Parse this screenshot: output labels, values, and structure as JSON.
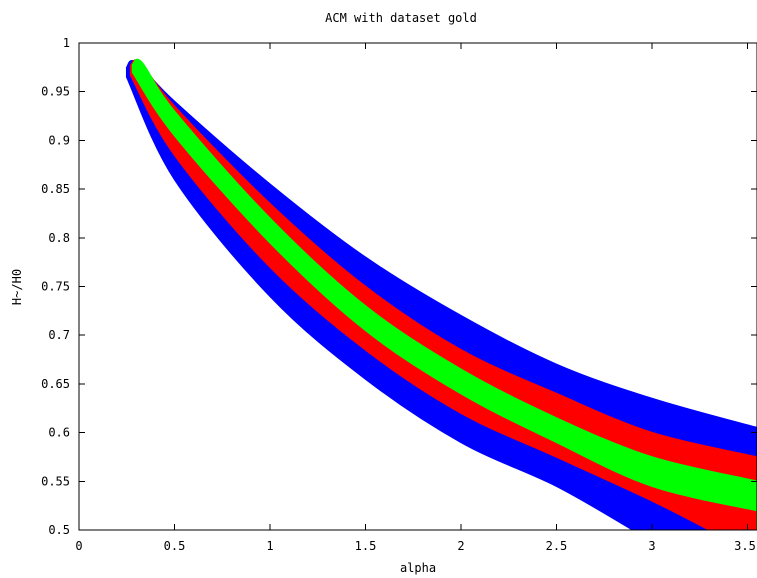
{
  "chart_data": {
    "type": "area",
    "title": "ACM with dataset gold",
    "xlabel": "alpha",
    "ylabel": "H~/H0",
    "xlim": [
      0,
      3.55
    ],
    "ylim": [
      0.5,
      1.0
    ],
    "xticks": [
      "0",
      "0.5",
      "1",
      "1.5",
      "2",
      "2.5",
      "3",
      "3.5"
    ],
    "xtick_values": [
      0,
      0.5,
      1,
      1.5,
      2,
      2.5,
      3,
      3.5
    ],
    "yticks": [
      "0.5",
      "0.55",
      "0.6",
      "0.65",
      "0.7",
      "0.75",
      "0.8",
      "0.85",
      "0.9",
      "0.95",
      "1"
    ],
    "ytick_values": [
      0.5,
      0.55,
      0.6,
      0.65,
      0.7,
      0.75,
      0.8,
      0.85,
      0.9,
      0.95,
      1.0
    ],
    "grid": false,
    "legend": "none",
    "series": [
      {
        "color": "#0000ff",
        "upper": [
          [
            0.25,
            0.975
          ],
          [
            0.3,
            0.98
          ],
          [
            0.5,
            0.94
          ],
          [
            1.0,
            0.855
          ],
          [
            1.5,
            0.78
          ],
          [
            2.0,
            0.72
          ],
          [
            2.5,
            0.67
          ],
          [
            3.0,
            0.635
          ],
          [
            3.55,
            0.605
          ]
        ],
        "lower": [
          [
            0.25,
            0.965
          ],
          [
            0.5,
            0.86
          ],
          [
            1.0,
            0.74
          ],
          [
            1.5,
            0.655
          ],
          [
            2.0,
            0.59
          ],
          [
            2.5,
            0.545
          ],
          [
            2.9,
            0.5
          ]
        ]
      },
      {
        "color": "#ff0000",
        "upper": [
          [
            0.27,
            0.977
          ],
          [
            0.32,
            0.98
          ],
          [
            0.5,
            0.935
          ],
          [
            1.0,
            0.835
          ],
          [
            1.5,
            0.75
          ],
          [
            2.0,
            0.685
          ],
          [
            2.5,
            0.64
          ],
          [
            3.0,
            0.6
          ],
          [
            3.55,
            0.575
          ]
        ],
        "lower": [
          [
            0.27,
            0.967
          ],
          [
            0.5,
            0.885
          ],
          [
            1.0,
            0.77
          ],
          [
            1.5,
            0.685
          ],
          [
            2.0,
            0.62
          ],
          [
            2.5,
            0.575
          ],
          [
            3.0,
            0.53
          ],
          [
            3.3,
            0.5
          ]
        ]
      },
      {
        "color": "#00ff00",
        "upper": [
          [
            0.28,
            0.978
          ],
          [
            0.33,
            0.98
          ],
          [
            0.5,
            0.93
          ],
          [
            1.0,
            0.82
          ],
          [
            1.5,
            0.73
          ],
          [
            2.0,
            0.665
          ],
          [
            2.5,
            0.615
          ],
          [
            3.0,
            0.575
          ],
          [
            3.55,
            0.55
          ]
        ],
        "lower": [
          [
            0.28,
            0.97
          ],
          [
            0.5,
            0.905
          ],
          [
            1.0,
            0.795
          ],
          [
            1.5,
            0.705
          ],
          [
            2.0,
            0.64
          ],
          [
            2.5,
            0.59
          ],
          [
            3.0,
            0.545
          ],
          [
            3.55,
            0.52
          ]
        ]
      }
    ]
  }
}
